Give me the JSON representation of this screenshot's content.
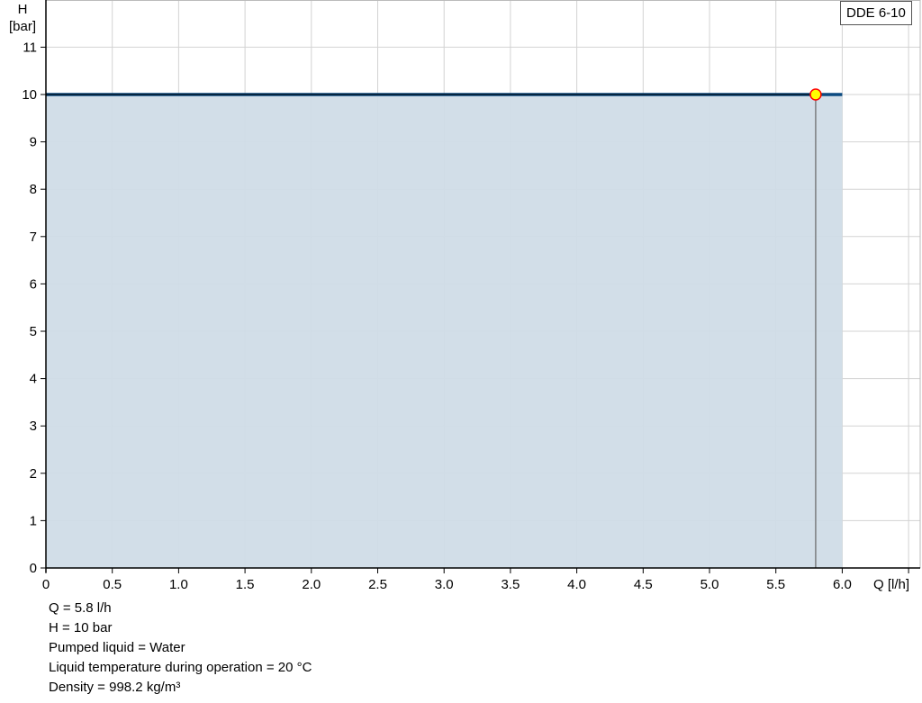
{
  "chart_data": {
    "type": "line",
    "xlabel": "Q [l/h]",
    "ylabel_line1": "H",
    "ylabel_line2": "[bar]",
    "xlim": [
      0,
      6.5
    ],
    "ylim": [
      0,
      12
    ],
    "x_ticks": [
      0,
      0.5,
      1.0,
      1.5,
      2.0,
      2.5,
      3.0,
      3.5,
      4.0,
      4.5,
      5.0,
      5.5,
      6.0,
      6.5
    ],
    "x_tick_labels": [
      "0",
      "0.5",
      "1.0",
      "1.5",
      "2.0",
      "2.5",
      "3.0",
      "3.5",
      "4.0",
      "4.5",
      "5.0",
      "5.5",
      "6.0",
      ""
    ],
    "y_ticks": [
      0,
      1,
      2,
      3,
      4,
      5,
      6,
      7,
      8,
      9,
      10,
      11
    ],
    "y_tick_labels": [
      "0",
      "1",
      "2",
      "3",
      "4",
      "5",
      "6",
      "7",
      "8",
      "9",
      "10",
      "11"
    ],
    "grid": true,
    "legend": {
      "label": "DDE 6-10",
      "placement": "top-right"
    },
    "series": [
      {
        "name": "DDE 6-10",
        "x": [
          0,
          6.0
        ],
        "y": [
          10,
          10
        ],
        "color": "#0b4a80",
        "fill": "#d0dce7"
      }
    ],
    "operating_line": {
      "x": [
        0,
        5.8
      ],
      "y": [
        10,
        10
      ],
      "color": "#000000"
    },
    "operating_point": {
      "x": 5.8,
      "y": 10,
      "fill": "#ffff00",
      "stroke": "#ff0000"
    }
  },
  "info": [
    "Q = 5.8 l/h",
    "H = 10 bar",
    "Pumped liquid = Water",
    "Liquid temperature during operation = 20 °C",
    "Density = 998.2 kg/m³"
  ]
}
